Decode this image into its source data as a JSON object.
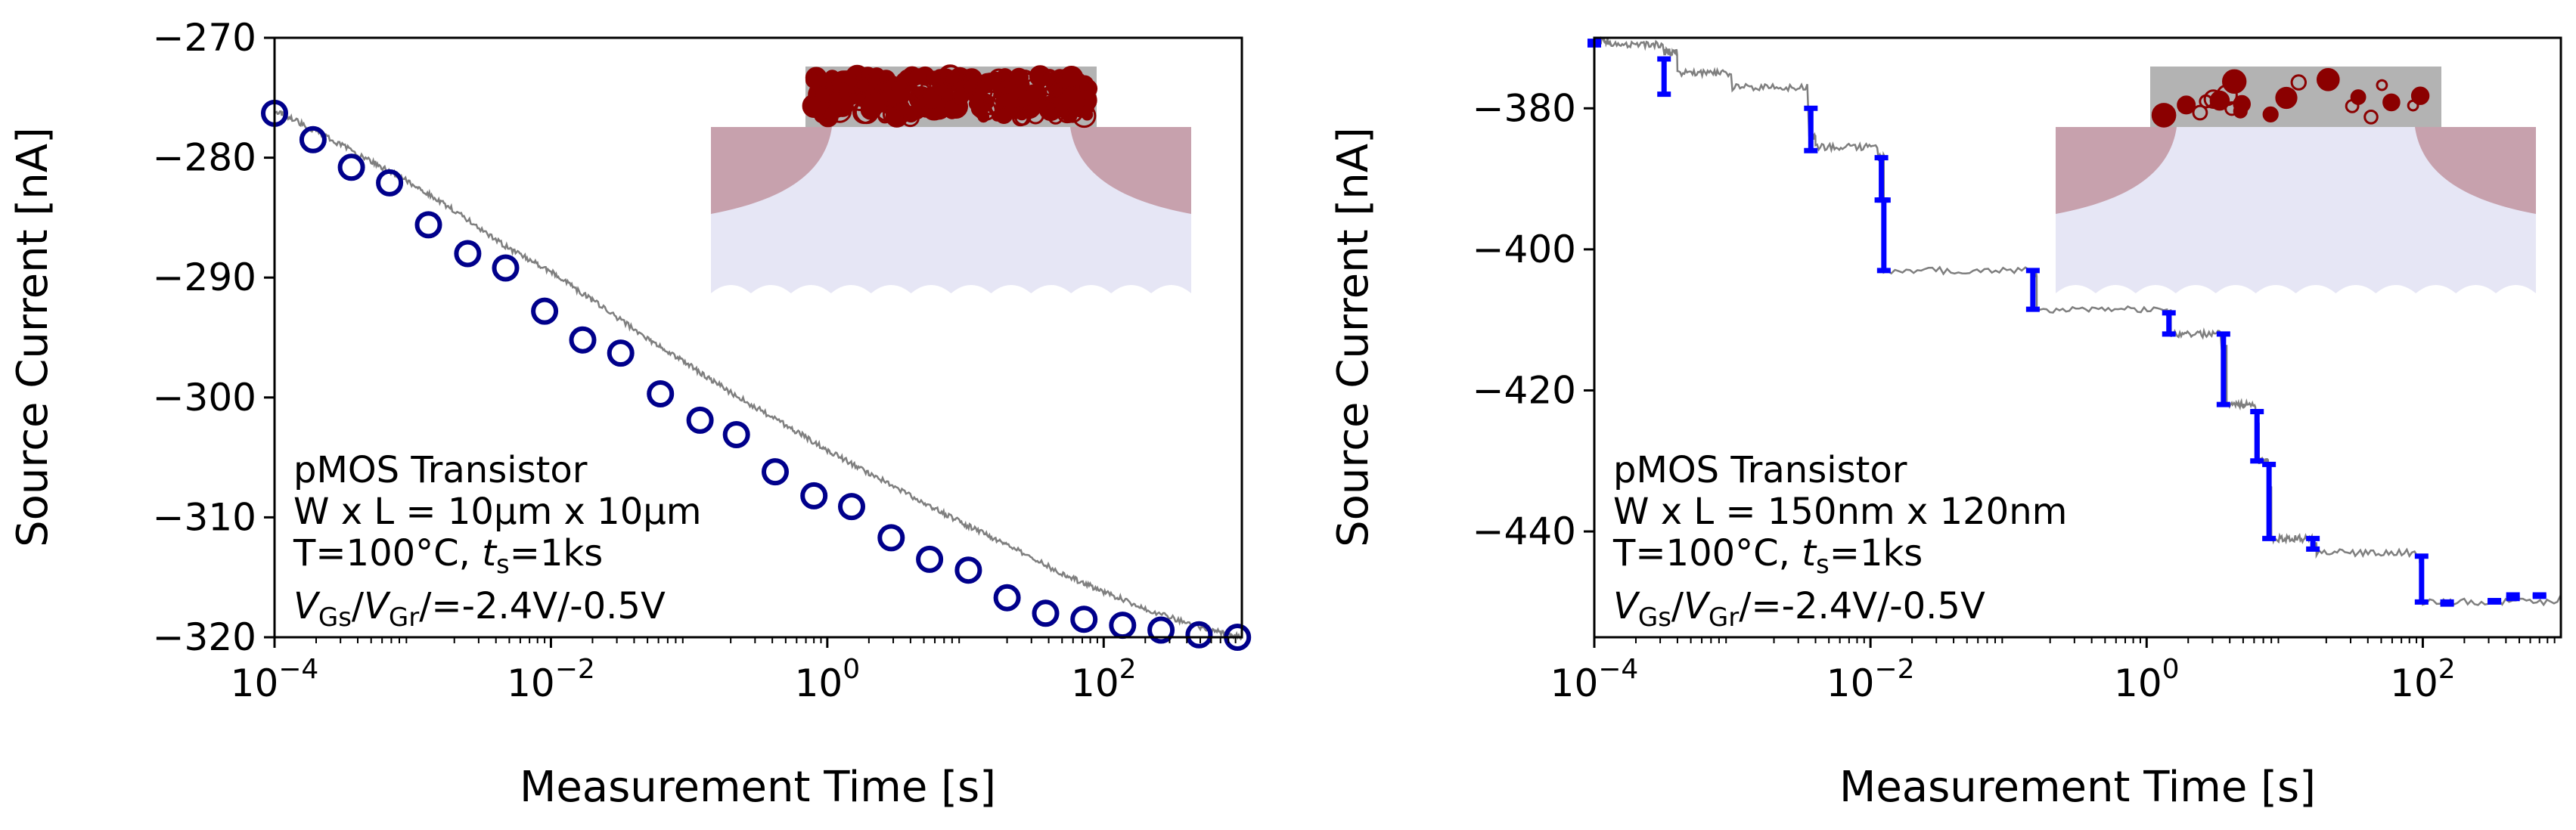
{
  "chart_data": [
    {
      "type": "scatter",
      "panel": "left",
      "xscale": "log",
      "xlim": [
        0.0001,
        1000
      ],
      "ylim": [
        -320,
        -270
      ],
      "xlabel": "Measurement Time  [s]",
      "ylabel": "Source Current  [nA]",
      "xticks": [
        {
          "base": "10",
          "exp": "−4",
          "value": 0.0001
        },
        {
          "base": "10",
          "exp": "−2",
          "value": 0.01
        },
        {
          "base": "10",
          "exp": "0",
          "value": 1
        },
        {
          "base": "10",
          "exp": "2",
          "value": 100
        }
      ],
      "yticks": [
        {
          "label": "−270",
          "value": -270
        },
        {
          "label": "−280",
          "value": -280
        },
        {
          "label": "−290",
          "value": -290
        },
        {
          "label": "−300",
          "value": -300
        },
        {
          "label": "−310",
          "value": -310
        },
        {
          "label": "−320",
          "value": -320
        }
      ],
      "annotation": {
        "line1": "pMOS Transistor",
        "line2": "W x L = 10µm x 10µm",
        "line3_prefix": "T=100°C, ",
        "line3_var": "t",
        "line3_sub": "s",
        "line3_suffix": "=1ks",
        "line4_v1": "V",
        "line4_sub1": "Gs",
        "line4_sep": "/",
        "line4_v2": "V",
        "line4_sub2": "Gr",
        "line4_suffix": "/=-2.4V/-0.5V"
      },
      "series": [
        {
          "name": "measured trace",
          "style": "line",
          "color": "#7f7f7f",
          "x": [
            0.0001,
            0.0002,
            0.0005,
            0.001,
            0.002,
            0.005,
            0.01,
            0.02,
            0.05,
            0.1,
            0.2,
            0.5,
            1,
            2,
            5,
            10,
            20,
            50,
            100,
            200,
            500,
            1000
          ],
          "y": [
            -276,
            -277.8,
            -280.3,
            -282.2,
            -284.4,
            -287.6,
            -289.5,
            -291.9,
            -295.1,
            -297.3,
            -299.6,
            -302.3,
            -304.4,
            -306.3,
            -308.8,
            -310.6,
            -312.3,
            -314.7,
            -316.2,
            -317.6,
            -319.2,
            -320
          ]
        },
        {
          "name": "model markers",
          "style": "open-circle",
          "color": "#00008b",
          "x": [
            0.0001,
            0.00019,
            0.00036,
            0.00068,
            0.0013,
            0.0025,
            0.0047,
            0.009,
            0.017,
            0.032,
            0.062,
            0.12,
            0.22,
            0.42,
            0.8,
            1.5,
            2.9,
            5.5,
            10.5,
            20,
            38,
            72,
            137,
            260,
            490,
            930
          ],
          "y": [
            -276.3,
            -278.5,
            -280.8,
            -282.1,
            -285.6,
            -288,
            -289.2,
            -292.8,
            -295.2,
            -296.3,
            -299.7,
            -301.9,
            -303.1,
            -306.2,
            -308.2,
            -309.1,
            -311.7,
            -313.5,
            -314.4,
            -316.7,
            -318,
            -318.5,
            -319,
            -319.4,
            -319.8,
            -320
          ]
        }
      ],
      "inset": {
        "description": "device cross-section with dense trap layer",
        "trap_color": "#8b0000",
        "oxide_color": "#b3b3b3",
        "substrate_color": "#e6e6f5",
        "well_color": "#c7a1ad"
      }
    },
    {
      "type": "scatter",
      "panel": "right",
      "xscale": "log",
      "xlim": [
        0.0001,
        1000
      ],
      "ylim": [
        -455,
        -370
      ],
      "xlabel": "Measurement Time  [s]",
      "ylabel": "Source Current  [nA]",
      "xticks": [
        {
          "base": "10",
          "exp": "−4",
          "value": 0.0001
        },
        {
          "base": "10",
          "exp": "−2",
          "value": 0.01
        },
        {
          "base": "10",
          "exp": "0",
          "value": 1
        },
        {
          "base": "10",
          "exp": "2",
          "value": 100
        }
      ],
      "yticks": [
        {
          "label": "−380",
          "value": -380
        },
        {
          "label": "−400",
          "value": -400
        },
        {
          "label": "−420",
          "value": -420
        },
        {
          "label": "−440",
          "value": -440
        }
      ],
      "annotation": {
        "line1": "pMOS Transistor",
        "line2": "W x L = 150nm x 120nm",
        "line3_prefix": "T=100°C, ",
        "line3_var": "t",
        "line3_sub": "s",
        "line3_suffix": "=1ks",
        "line4_v1": "V",
        "line4_sub1": "Gs",
        "line4_sep": "/",
        "line4_v2": "V",
        "line4_sub2": "Gr",
        "line4_suffix": "/=-2.4V/-0.5V"
      },
      "series": [
        {
          "name": "measured trace",
          "style": "step",
          "color": "#7f7f7f",
          "x": [
            0.0001,
            0.00013,
            0.00032,
            0.0004,
            0.001,
            0.0036,
            0.004,
            0.0115,
            0.0125,
            0.15,
            0.16,
            1.4,
            1.5,
            3.5,
            3.8,
            6.2,
            6.5,
            7.6,
            8,
            16,
            17,
            95,
            100,
            1000
          ],
          "y": [
            -370.5,
            -371,
            -372,
            -375,
            -377,
            -384,
            -385.5,
            -387,
            -403,
            -403.5,
            -408.5,
            -409,
            -412,
            -414,
            -422,
            -425,
            -430,
            -434,
            -441,
            -442,
            -443,
            -444,
            -450,
            -449
          ]
        },
        {
          "name": "detected steps",
          "style": "errorbar-step",
          "color": "#0000ff",
          "steps": [
            {
              "x": 0.0001,
              "y1": -370.5,
              "y2": -371
            },
            {
              "x": 0.00032,
              "y1": -373,
              "y2": -378
            },
            {
              "x": 0.0037,
              "y1": -380,
              "y2": -386
            },
            {
              "x": 0.012,
              "y1": -387,
              "y2": -393
            },
            {
              "x": 0.0125,
              "y1": -393,
              "y2": -403
            },
            {
              "x": 0.15,
              "y1": -403,
              "y2": -408.5
            },
            {
              "x": 1.45,
              "y1": -409,
              "y2": -412
            },
            {
              "x": 3.6,
              "y1": -412,
              "y2": -422
            },
            {
              "x": 6.3,
              "y1": -423,
              "y2": -430
            },
            {
              "x": 7.7,
              "y1": -430.5,
              "y2": -441
            },
            {
              "x": 16,
              "y1": -441,
              "y2": -442.5
            },
            {
              "x": 98,
              "y1": -443.5,
              "y2": -450
            },
            {
              "x": 150,
              "y1": -450,
              "y2": -450.3
            },
            {
              "x": 330,
              "y1": -449.8,
              "y2": -450
            },
            {
              "x": 450,
              "y1": -449,
              "y2": -449.5
            },
            {
              "x": 700,
              "y1": -449,
              "y2": -449.2
            }
          ]
        }
      ],
      "inset": {
        "description": "device cross-section with few discrete traps",
        "trap_color": "#8b0000",
        "oxide_color": "#b3b3b3",
        "substrate_color": "#e6e6f5",
        "well_color": "#c7a1ad"
      }
    }
  ]
}
